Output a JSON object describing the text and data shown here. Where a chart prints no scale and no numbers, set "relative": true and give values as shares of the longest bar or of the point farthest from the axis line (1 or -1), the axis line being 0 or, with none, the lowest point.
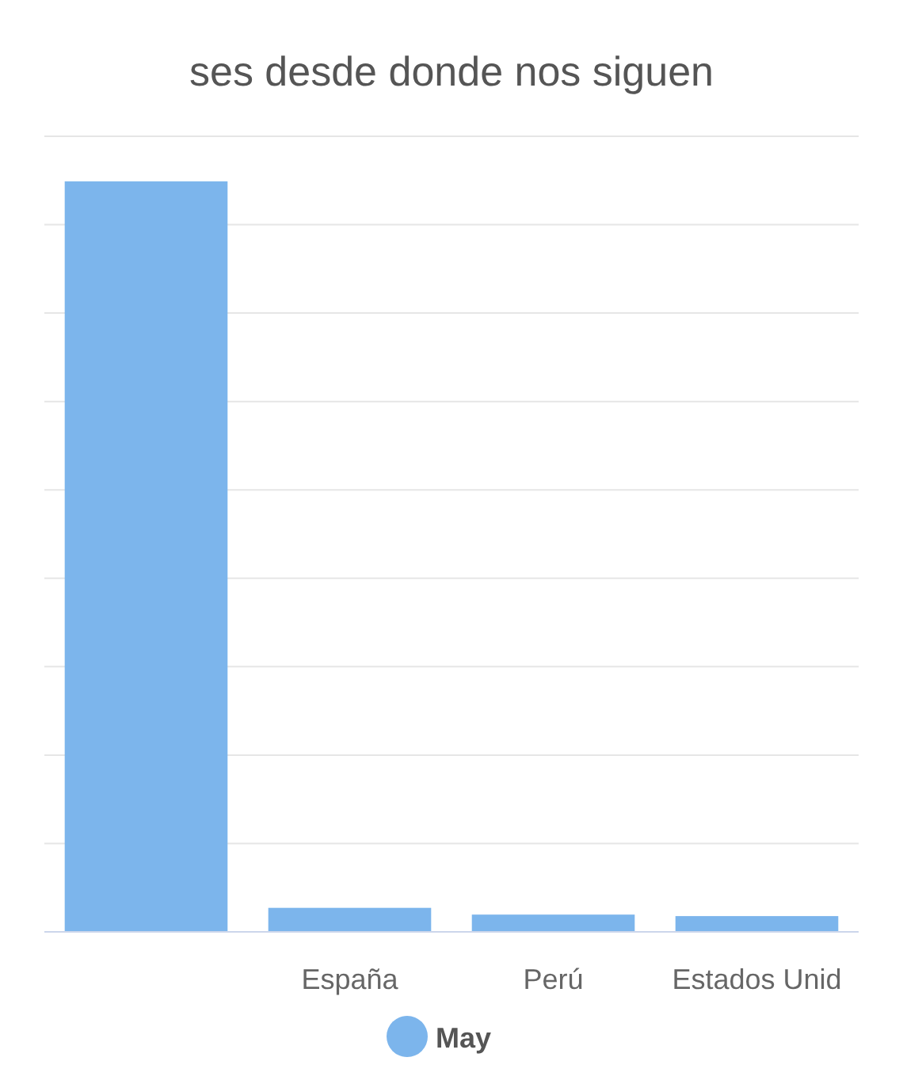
{
  "chart_data": {
    "type": "bar",
    "title": "ses desde donde nos siguen",
    "relative": true,
    "categories": [
      null,
      "España",
      "Perú",
      "Estados Unid"
    ],
    "series": [
      {
        "name": "May",
        "color": "#7cb5ec",
        "values": [
          1,
          0.032,
          0.023,
          0.021
        ]
      }
    ],
    "grid": "y",
    "legend": "bottom"
  }
}
